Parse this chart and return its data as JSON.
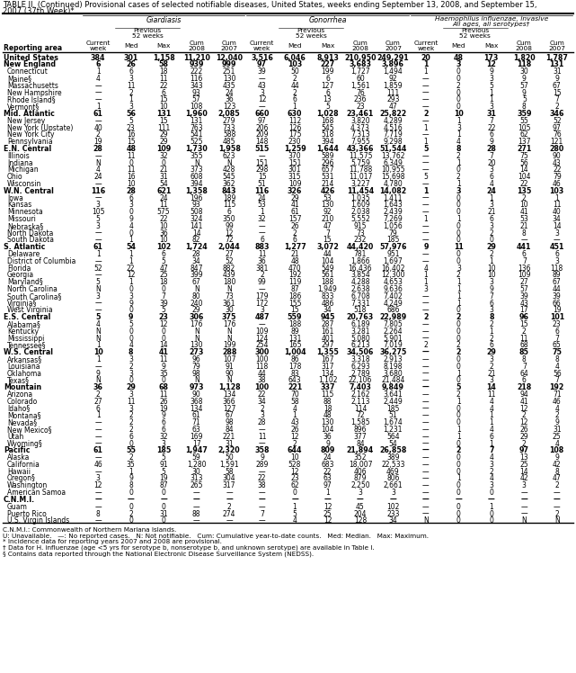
{
  "title_line1": "TABLE II. (Continued) Provisional cases of selected notifiable diseases, United States, weeks ending September 13, 2008, and September 15,",
  "title_line2": "2007 (37th Week)*",
  "footnote_cnmi": "C.N.M.I.: Commonwealth of Northern Mariana Islands.",
  "footnote_u": "U: Unavailable.   —: No reported cases.   N: Not notifiable.   Cum: Cumulative year-to-date counts.   Med: Median.   Max: Maximum.",
  "footnote_star": "* Incidence data for reporting years 2007 and 2008 are provisional.",
  "footnote_dagger": "† Data for H. influenzae (age <5 yrs for serotype b, nonserotype b, and unknown serotype) are available in Table I.",
  "footnote_section": "§ Contains data reported through the National Electronic Disease Surveillance System (NEDSS).",
  "rows": [
    [
      "United States",
      "384",
      "301",
      "1,158",
      "11,210",
      "12,040",
      "3,516",
      "6,046",
      "8,913",
      "210,950",
      "249,291",
      "20",
      "48",
      "173",
      "1,820",
      "1,787"
    ],
    [
      "New England",
      "6",
      "26",
      "58",
      "939",
      "999",
      "97",
      "103",
      "227",
      "3,683",
      "3,896",
      "1",
      "3",
      "12",
      "118",
      "131"
    ],
    [
      "Connecticut",
      "1",
      "6",
      "18",
      "222",
      "251",
      "39",
      "50",
      "199",
      "1,727",
      "1,494",
      "1",
      "0",
      "9",
      "30",
      "31"
    ],
    [
      "Maine§",
      "4",
      "3",
      "11",
      "116",
      "130",
      "—",
      "2",
      "6",
      "60",
      "92",
      "—",
      "0",
      "3",
      "9",
      "9"
    ],
    [
      "Massachusetts",
      "—",
      "11",
      "22",
      "343",
      "435",
      "43",
      "44",
      "127",
      "1,561",
      "1,859",
      "—",
      "2",
      "5",
      "57",
      "67"
    ],
    [
      "New Hampshire",
      "—",
      "2",
      "6",
      "93",
      "24",
      "3",
      "2",
      "6",
      "76",
      "111",
      "—",
      "0",
      "1",
      "9",
      "15"
    ],
    [
      "Rhode Island§",
      "—",
      "1",
      "15",
      "57",
      "36",
      "12",
      "6",
      "13",
      "236",
      "293",
      "—",
      "0",
      "1",
      "5",
      "7"
    ],
    [
      "Vermont§",
      "1",
      "3",
      "10",
      "108",
      "123",
      "—",
      "1",
      "5",
      "23",
      "47",
      "—",
      "0",
      "3",
      "8",
      "2"
    ],
    [
      "Mid. Atlantic",
      "61",
      "56",
      "131",
      "1,960",
      "2,085",
      "660",
      "630",
      "1,028",
      "23,461",
      "25,822",
      "2",
      "10",
      "31",
      "359",
      "346"
    ],
    [
      "New Jersey",
      "—",
      "5",
      "15",
      "131",
      "279",
      "97",
      "112",
      "168",
      "3,820",
      "4,289",
      "—",
      "1",
      "7",
      "55",
      "52"
    ],
    [
      "New York (Upstate)",
      "40",
      "23",
      "111",
      "763",
      "733",
      "206",
      "126",
      "545",
      "4,373",
      "4,516",
      "1",
      "3",
      "22",
      "105",
      "97"
    ],
    [
      "New York City",
      "2",
      "16",
      "29",
      "541",
      "588",
      "209",
      "175",
      "518",
      "7,313",
      "7,719",
      "—",
      "1",
      "6",
      "62",
      "76"
    ],
    [
      "Pennsylvania",
      "19",
      "15",
      "29",
      "525",
      "485",
      "148",
      "230",
      "394",
      "7,955",
      "9,298",
      "1",
      "4",
      "9",
      "137",
      "121"
    ],
    [
      "E.N. Central",
      "28",
      "48",
      "109",
      "1,730",
      "1,958",
      "515",
      "1,259",
      "1,644",
      "43,366",
      "51,544",
      "5",
      "8",
      "28",
      "271",
      "280"
    ],
    [
      "Illinois",
      "—",
      "11",
      "32",
      "355",
      "623",
      "—",
      "370",
      "589",
      "11,575",
      "13,762",
      "—",
      "2",
      "7",
      "75",
      "90"
    ],
    [
      "Indiana",
      "N",
      "0",
      "0",
      "N",
      "N",
      "151",
      "151",
      "296",
      "5,759",
      "6,349",
      "—",
      "1",
      "20",
      "56",
      "43"
    ],
    [
      "Michigan",
      "4",
      "11",
      "21",
      "373",
      "428",
      "298",
      "301",
      "657",
      "11,788",
      "10,955",
      "—",
      "0",
      "3",
      "14",
      "22"
    ],
    [
      "Ohio",
      "24",
      "16",
      "31",
      "608",
      "545",
      "15",
      "315",
      "531",
      "11,017",
      "15,698",
      "5",
      "2",
      "6",
      "104",
      "79"
    ],
    [
      "Wisconsin",
      "—",
      "10",
      "54",
      "394",
      "362",
      "51",
      "109",
      "214",
      "3,227",
      "4,780",
      "—",
      "1",
      "4",
      "22",
      "46"
    ],
    [
      "W.N. Central",
      "116",
      "28",
      "621",
      "1,358",
      "843",
      "116",
      "326",
      "426",
      "11,454",
      "14,082",
      "1",
      "3",
      "24",
      "135",
      "103"
    ],
    [
      "Iowa",
      "—",
      "6",
      "24",
      "196",
      "189",
      "24",
      "29",
      "53",
      "1,035",
      "1,411",
      "—",
      "0",
      "1",
      "2",
      "1"
    ],
    [
      "Kansas",
      "3",
      "3",
      "11",
      "93",
      "115",
      "53",
      "41",
      "130",
      "1,609",
      "1,643",
      "—",
      "0",
      "3",
      "10",
      "11"
    ],
    [
      "Minnesota",
      "105",
      "0",
      "575",
      "508",
      "6",
      "1",
      "61",
      "92",
      "2,038",
      "2,439",
      "—",
      "0",
      "21",
      "41",
      "40"
    ],
    [
      "Missouri",
      "5",
      "9",
      "22",
      "324",
      "350",
      "32",
      "157",
      "210",
      "5,552",
      "7,269",
      "1",
      "1",
      "6",
      "53",
      "34"
    ],
    [
      "Nebraska§",
      "3",
      "4",
      "10",
      "141",
      "99",
      "—",
      "26",
      "47",
      "915",
      "1,056",
      "—",
      "0",
      "3",
      "21",
      "14"
    ],
    [
      "North Dakota",
      "—",
      "0",
      "36",
      "14",
      "12",
      "—",
      "2",
      "7",
      "73",
      "79",
      "—",
      "0",
      "2",
      "8",
      "3"
    ],
    [
      "South Dakota",
      "—",
      "1",
      "10",
      "82",
      "72",
      "6",
      "6",
      "15",
      "232",
      "185",
      "—",
      "0",
      "0",
      "—",
      "—"
    ],
    [
      "S. Atlantic",
      "61",
      "54",
      "102",
      "1,724",
      "2,044",
      "883",
      "1,277",
      "3,072",
      "44,420",
      "57,976",
      "9",
      "11",
      "29",
      "441",
      "451"
    ],
    [
      "Delaware",
      "1",
      "1",
      "6",
      "28",
      "27",
      "11",
      "21",
      "44",
      "781",
      "951",
      "—",
      "0",
      "2",
      "6",
      "6"
    ],
    [
      "District of Columbia",
      "—",
      "1",
      "5",
      "34",
      "52",
      "36",
      "48",
      "104",
      "1,866",
      "1,697",
      "—",
      "0",
      "1",
      "7",
      "3"
    ],
    [
      "Florida",
      "52",
      "22",
      "47",
      "847",
      "882",
      "381",
      "470",
      "549",
      "16,436",
      "16,402",
      "4",
      "3",
      "10",
      "136",
      "118"
    ],
    [
      "Georgia",
      "—",
      "12",
      "25",
      "399",
      "439",
      "2",
      "192",
      "561",
      "3,854",
      "12,300",
      "1",
      "2",
      "10",
      "109",
      "89"
    ],
    [
      "Maryland§",
      "5",
      "1",
      "18",
      "67",
      "180",
      "99",
      "119",
      "188",
      "4,288",
      "4,653",
      "1",
      "1",
      "3",
      "27",
      "67"
    ],
    [
      "North Carolina",
      "N",
      "0",
      "0",
      "N",
      "N",
      "—",
      "87",
      "1,949",
      "2,638",
      "9,636",
      "3",
      "1",
      "9",
      "57",
      "44"
    ],
    [
      "South Carolina§",
      "3",
      "3",
      "7",
      "80",
      "73",
      "179",
      "186",
      "833",
      "6,708",
      "7,402",
      "—",
      "1",
      "7",
      "39",
      "39"
    ],
    [
      "Virginia§",
      "—",
      "9",
      "39",
      "240",
      "361",
      "172",
      "155",
      "486",
      "7,331",
      "4,249",
      "—",
      "1",
      "6",
      "43",
      "66"
    ],
    [
      "West Virginia",
      "—",
      "0",
      "5",
      "29",
      "30",
      "3",
      "15",
      "34",
      "518",
      "686",
      "—",
      "0",
      "3",
      "17",
      "19"
    ],
    [
      "E.S. Central",
      "5",
      "9",
      "23",
      "306",
      "375",
      "487",
      "559",
      "945",
      "20,763",
      "22,989",
      "2",
      "2",
      "8",
      "96",
      "101"
    ],
    [
      "Alabama§",
      "4",
      "5",
      "12",
      "176",
      "176",
      "—",
      "188",
      "287",
      "6,189",
      "7,805",
      "—",
      "0",
      "2",
      "15",
      "23"
    ],
    [
      "Kentucky",
      "N",
      "0",
      "0",
      "N",
      "N",
      "109",
      "89",
      "161",
      "3,281",
      "2,264",
      "—",
      "0",
      "1",
      "2",
      "6"
    ],
    [
      "Mississippi",
      "N",
      "0",
      "0",
      "N",
      "N",
      "124",
      "131",
      "401",
      "5,080",
      "5,901",
      "—",
      "0",
      "2",
      "11",
      "7"
    ],
    [
      "Tennessee§",
      "1",
      "4",
      "14",
      "130",
      "199",
      "254",
      "165",
      "297",
      "6,213",
      "7,019",
      "2",
      "2",
      "6",
      "68",
      "65"
    ],
    [
      "W.S. Central",
      "10",
      "8",
      "41",
      "273",
      "288",
      "300",
      "1,004",
      "1,355",
      "34,506",
      "36,275",
      "—",
      "2",
      "29",
      "85",
      "75"
    ],
    [
      "Arkansas§",
      "1",
      "3",
      "11",
      "96",
      "107",
      "100",
      "86",
      "167",
      "3,318",
      "2,913",
      "—",
      "0",
      "3",
      "8",
      "8"
    ],
    [
      "Louisiana",
      "—",
      "2",
      "9",
      "79",
      "91",
      "118",
      "178",
      "317",
      "6,293",
      "8,198",
      "—",
      "0",
      "2",
      "7",
      "4"
    ],
    [
      "Oklahoma",
      "9",
      "3",
      "35",
      "98",
      "90",
      "44",
      "83",
      "134",
      "2,789",
      "3,680",
      "—",
      "1",
      "21",
      "64",
      "56"
    ],
    [
      "Texas§",
      "N",
      "0",
      "0",
      "N",
      "N",
      "38",
      "643",
      "1,102",
      "22,106",
      "21,484",
      "—",
      "0",
      "3",
      "6",
      "7"
    ],
    [
      "Mountain",
      "36",
      "29",
      "68",
      "973",
      "1,128",
      "100",
      "221",
      "337",
      "7,403",
      "9,849",
      "—",
      "5",
      "14",
      "218",
      "192"
    ],
    [
      "Arizona",
      "2",
      "3",
      "11",
      "90",
      "134",
      "22",
      "70",
      "115",
      "2,162",
      "3,641",
      "—",
      "2",
      "11",
      "94",
      "71"
    ],
    [
      "Colorado",
      "27",
      "11",
      "26",
      "368",
      "366",
      "34",
      "58",
      "88",
      "2,113",
      "2,449",
      "—",
      "1",
      "4",
      "41",
      "46"
    ],
    [
      "Idaho§",
      "6",
      "3",
      "19",
      "134",
      "127",
      "2",
      "4",
      "18",
      "114",
      "185",
      "—",
      "0",
      "4",
      "12",
      "4"
    ],
    [
      "Montana§",
      "1",
      "2",
      "9",
      "61",
      "67",
      "3",
      "1",
      "48",
      "72",
      "51",
      "—",
      "0",
      "1",
      "2",
      "2"
    ],
    [
      "Nevada§",
      "—",
      "2",
      "6",
      "71",
      "98",
      "28",
      "43",
      "130",
      "1,585",
      "1,674",
      "—",
      "0",
      "1",
      "12",
      "9"
    ],
    [
      "New Mexico§",
      "—",
      "2",
      "6",
      "63",
      "84",
      "—",
      "26",
      "104",
      "896",
      "1,231",
      "—",
      "1",
      "4",
      "26",
      "31"
    ],
    [
      "Utah",
      "—",
      "6",
      "32",
      "169",
      "221",
      "11",
      "12",
      "36",
      "377",
      "564",
      "—",
      "1",
      "6",
      "29",
      "25"
    ],
    [
      "Wyoming§",
      "—",
      "0",
      "3",
      "17",
      "31",
      "—",
      "2",
      "9",
      "84",
      "54",
      "—",
      "0",
      "1",
      "2",
      "4"
    ],
    [
      "Pacific",
      "61",
      "55",
      "185",
      "1,947",
      "2,320",
      "358",
      "644",
      "809",
      "21,894",
      "26,858",
      "—",
      "2",
      "7",
      "97",
      "108"
    ],
    [
      "Alaska",
      "—",
      "2",
      "5",
      "59",
      "50",
      "9",
      "10",
      "24",
      "352",
      "389",
      "—",
      "0",
      "4",
      "13",
      "9"
    ],
    [
      "California",
      "46",
      "35",
      "91",
      "1,280",
      "1,591",
      "289",
      "528",
      "683",
      "18,007",
      "22,533",
      "—",
      "0",
      "3",
      "25",
      "42"
    ],
    [
      "Hawaii",
      "—",
      "1",
      "5",
      "30",
      "58",
      "—",
      "12",
      "22",
      "406",
      "469",
      "—",
      "0",
      "2",
      "14",
      "8"
    ],
    [
      "Oregon§",
      "3",
      "9",
      "19",
      "313",
      "304",
      "22",
      "23",
      "63",
      "879",
      "806",
      "—",
      "1",
      "4",
      "42",
      "47"
    ],
    [
      "Washington",
      "12",
      "8",
      "87",
      "265",
      "317",
      "38",
      "62",
      "97",
      "2,250",
      "2,661",
      "—",
      "0",
      "3",
      "3",
      "2"
    ],
    [
      "American Samoa",
      "—",
      "0",
      "0",
      "—",
      "—",
      "—",
      "0",
      "1",
      "3",
      "3",
      "—",
      "0",
      "0",
      "—",
      "—"
    ],
    [
      "C.N.M.I.",
      "—",
      "—",
      "—",
      "—",
      "—",
      "—",
      "—",
      "—",
      "—",
      "—",
      "—",
      "—",
      "—",
      "—",
      "—"
    ],
    [
      "Guam",
      "—",
      "0",
      "0",
      "—",
      "2",
      "—",
      "1",
      "12",
      "45",
      "102",
      "—",
      "0",
      "1",
      "—",
      "—"
    ],
    [
      "Puerto Rico",
      "8",
      "2",
      "31",
      "88",
      "274",
      "7",
      "5",
      "25",
      "204",
      "233",
      "—",
      "0",
      "0",
      "—",
      "2"
    ],
    [
      "U.S. Virgin Islands",
      "—",
      "0",
      "0",
      "—",
      "—",
      "—",
      "4",
      "12",
      "128",
      "34",
      "N",
      "0",
      "0",
      "N",
      "N"
    ]
  ],
  "bold_rows": [
    0,
    1,
    8,
    13,
    19,
    27,
    37,
    42,
    47,
    56,
    63
  ]
}
